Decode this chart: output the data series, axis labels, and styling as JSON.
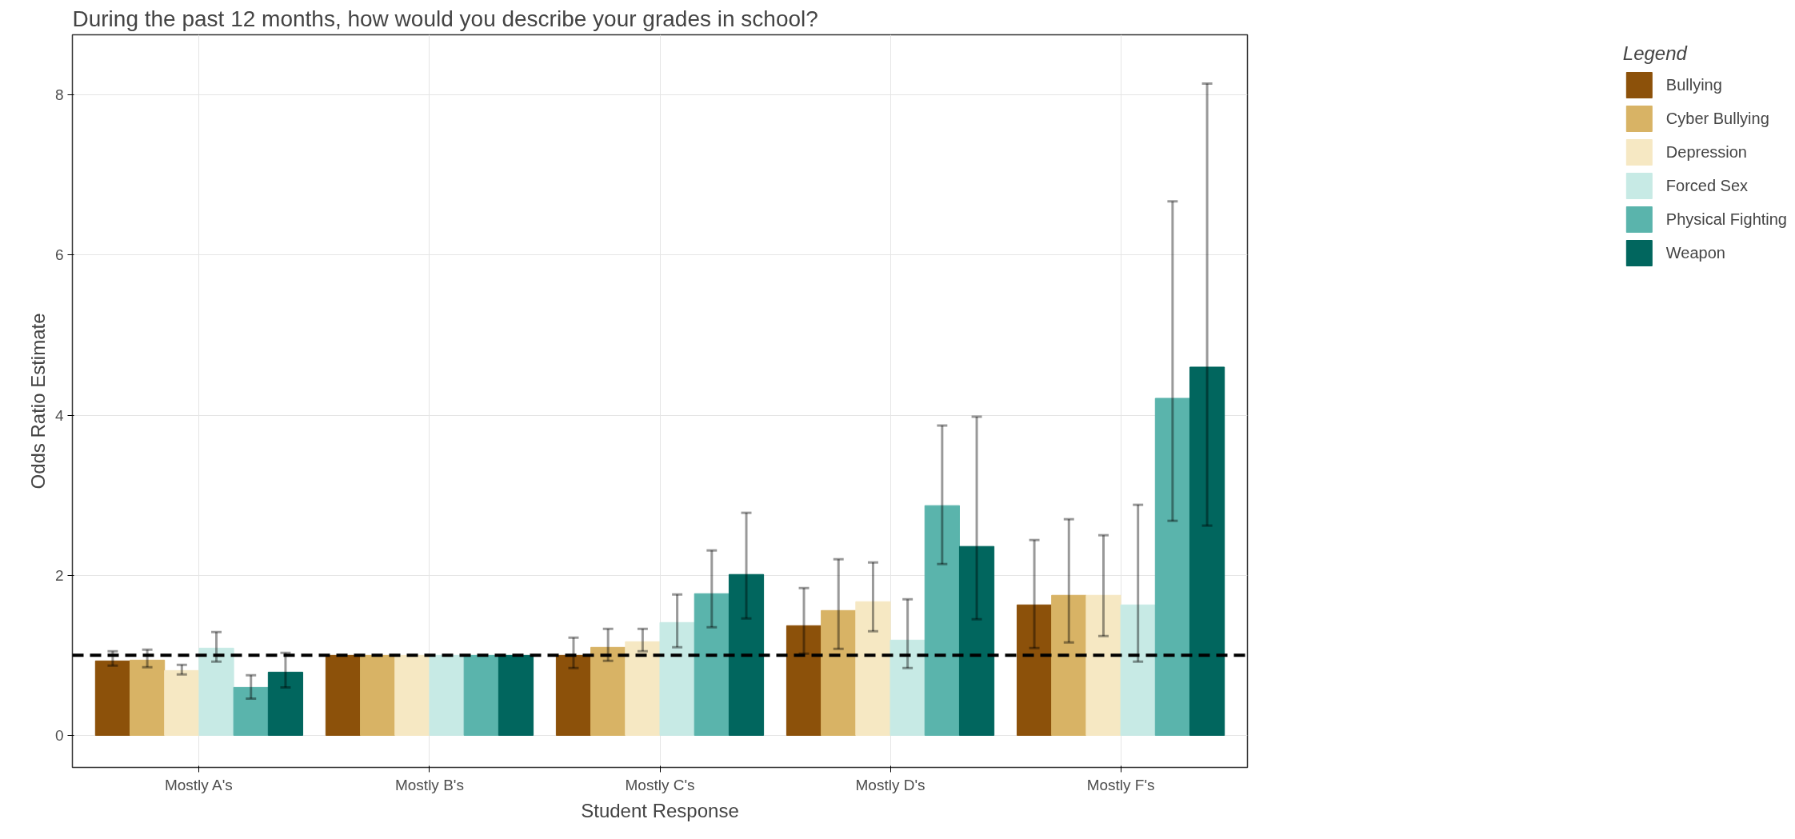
{
  "chart_data": {
    "type": "bar",
    "title": "During the past 12 months, how would you describe your grades in school?",
    "xlabel": "Student Response",
    "ylabel": "Odds Ratio Estimate",
    "legend_title": "Legend",
    "categories": [
      "Mostly A's",
      "Mostly B's",
      "Mostly C's",
      "Mostly D's",
      "Mostly F's"
    ],
    "series": [
      {
        "name": "Bullying",
        "color": "#8c510a",
        "values": [
          0.93,
          1,
          1.0,
          1.37,
          1.63
        ],
        "errors": [
          [
            0.87,
            1.05
          ],
          null,
          [
            0.84,
            1.22
          ],
          [
            1.02,
            1.84
          ],
          [
            1.09,
            2.44
          ]
        ]
      },
      {
        "name": "Cyber Bullying",
        "color": "#d8b365",
        "values": [
          0.94,
          1,
          1.1,
          1.56,
          1.75
        ],
        "errors": [
          [
            0.85,
            1.07
          ],
          null,
          [
            0.93,
            1.33
          ],
          [
            1.08,
            2.2
          ],
          [
            1.16,
            2.7
          ]
        ]
      },
      {
        "name": "Depression",
        "color": "#f6e8c3",
        "values": [
          0.81,
          1,
          1.17,
          1.67,
          1.75
        ],
        "errors": [
          [
            0.76,
            0.88
          ],
          null,
          [
            1.05,
            1.33
          ],
          [
            1.3,
            2.16
          ],
          [
            1.24,
            2.5
          ]
        ]
      },
      {
        "name": "Forced Sex",
        "color": "#c7eae5",
        "values": [
          1.09,
          1,
          1.41,
          1.19,
          1.63
        ],
        "errors": [
          [
            0.92,
            1.29
          ],
          null,
          [
            1.1,
            1.76
          ],
          [
            0.84,
            1.7
          ],
          [
            0.92,
            2.88
          ]
        ]
      },
      {
        "name": "Physical Fighting",
        "color": "#5ab4ac",
        "values": [
          0.6,
          1,
          1.77,
          2.87,
          4.21
        ],
        "errors": [
          [
            0.46,
            0.75
          ],
          null,
          [
            1.35,
            2.31
          ],
          [
            2.14,
            3.87
          ],
          [
            2.68,
            6.67
          ]
        ]
      },
      {
        "name": "Weapon",
        "color": "#01665e",
        "values": [
          0.79,
          1,
          2.01,
          2.36,
          4.6
        ],
        "errors": [
          [
            0.6,
            1.03
          ],
          null,
          [
            1.46,
            2.78
          ],
          [
            1.45,
            3.98
          ],
          [
            2.62,
            8.14
          ]
        ]
      }
    ],
    "ylim": [
      -0.4,
      8.75
    ],
    "yticks": [
      0,
      2,
      4,
      6,
      8
    ],
    "grid": true,
    "legend": "right",
    "ref_lines": [
      {
        "axis": "y",
        "value": 1,
        "line_style": "dashed",
        "color": "#000000"
      }
    ]
  }
}
